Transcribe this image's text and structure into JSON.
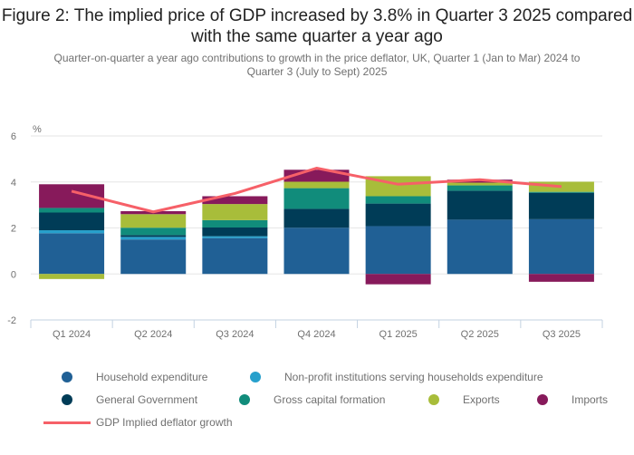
{
  "title": "Figure 2: The implied price of GDP increased by 3.8% in Quarter 3 2025 compared with the same quarter a year ago",
  "subtitle": "Quarter-on-quarter a year ago contributions to growth in the price deflator, UK, Quarter 1 (Jan to Mar) 2024 to Quarter 3 (July to Sept) 2025",
  "chart_data": {
    "type": "bar",
    "stacked": true,
    "title": "Figure 2: The implied price of GDP increased by 3.8% in Quarter 3 2025 compared with the same quarter a year ago",
    "subtitle": "Quarter-on-quarter a year ago contributions to growth in the price deflator, UK, Quarter 1 (Jan to Mar) 2024 to Quarter 3 (July to Sept) 2025",
    "xlabel": "",
    "ylabel": "%",
    "ylim": [
      -2,
      6
    ],
    "yticks": [
      -2,
      0,
      2,
      4,
      6
    ],
    "grid": true,
    "legend_position": "bottom",
    "categories": [
      "Q1 2024",
      "Q2 2024",
      "Q3 2024",
      "Q4 2024",
      "Q1 2025",
      "Q2 2025",
      "Q3 2025"
    ],
    "series": [
      {
        "name": "Household expenditure",
        "type": "bar",
        "color": "#206095",
        "values": [
          1.77,
          1.5,
          1.56,
          2.01,
          2.08,
          2.36,
          2.38
        ]
      },
      {
        "name": "Non-profit institutions serving households expenditure",
        "type": "bar",
        "color": "#27a0cc",
        "values": [
          0.13,
          0.11,
          0.08,
          0.0,
          0.0,
          0.0,
          0.0
        ]
      },
      {
        "name": "General Government",
        "type": "bar",
        "color": "#003c57",
        "values": [
          0.77,
          0.08,
          0.38,
          0.82,
          0.98,
          1.26,
          1.15
        ]
      },
      {
        "name": "Gross capital formation",
        "type": "bar",
        "color": "#118c7b",
        "values": [
          0.2,
          0.32,
          0.32,
          0.9,
          0.32,
          0.23,
          0.04
        ]
      },
      {
        "name": "Exports",
        "type": "bar",
        "color": "#a8bd3a",
        "values": [
          -0.22,
          0.59,
          0.7,
          0.28,
          0.87,
          0.12,
          0.44
        ]
      },
      {
        "name": "Imports",
        "type": "bar",
        "color": "#871a5b",
        "values": [
          1.03,
          0.13,
          0.34,
          0.52,
          -0.45,
          0.13,
          -0.34
        ]
      },
      {
        "name": "GDP Implied deflator growth",
        "type": "line",
        "color": "#f66068",
        "values": [
          3.6,
          2.7,
          3.5,
          4.6,
          3.9,
          4.1,
          3.8
        ]
      }
    ]
  }
}
